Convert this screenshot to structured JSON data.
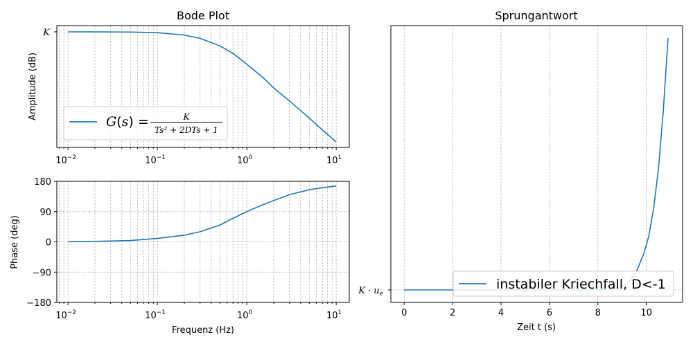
{
  "chart_data": [
    {
      "type": "line",
      "title": "Bode Plot",
      "xlabel": "",
      "ylabel": "Amplitude (dB)",
      "xscale": "log",
      "xlim": [
        0.0075,
        14
      ],
      "xticks": [
        {
          "base": "10",
          "exp": "−2"
        },
        {
          "base": "10",
          "exp": "−1"
        },
        {
          "base": "10",
          "exp": "0"
        },
        {
          "base": "10",
          "exp": "1"
        }
      ],
      "ytick_labels": [
        "K"
      ],
      "grid": true,
      "legend_placement": "lower-left",
      "series": [
        {
          "name": "G(s) = K / (Ts² + 2DTs + 1)",
          "legend": {
            "prefix": "G(s) = ",
            "numerator": "K",
            "denominator": "Ts² + 2DTs + 1"
          },
          "x": [
            0.01,
            0.02,
            0.05,
            0.1,
            0.2,
            0.3,
            0.5,
            0.7,
            1.0,
            1.5,
            2.0,
            3.0,
            5.0,
            7.0,
            10.0
          ],
          "y_relative": [
            0,
            -0.02,
            -0.1,
            -0.4,
            -1.5,
            -3.0,
            -6.5,
            -10.0,
            -15.0,
            -21.0,
            -26.0,
            -32.0,
            -40.0,
            -45.5,
            -51.0
          ]
        }
      ],
      "color": "#1f77b4"
    },
    {
      "type": "line",
      "title": "",
      "xlabel": "Frequenz (Hz)",
      "ylabel": "Phase (deg)",
      "xscale": "log",
      "xlim": [
        0.0075,
        14
      ],
      "ylim": [
        -180,
        180
      ],
      "xticks": [
        {
          "base": "10",
          "exp": "−2"
        },
        {
          "base": "10",
          "exp": "−1"
        },
        {
          "base": "10",
          "exp": "0"
        },
        {
          "base": "10",
          "exp": "1"
        }
      ],
      "yticks": [
        180,
        90,
        0,
        -90,
        -180
      ],
      "ytick_labels": [
        "180",
        "90",
        "0",
        "−90",
        "−180"
      ],
      "grid": true,
      "series": [
        {
          "name": "",
          "x": [
            0.01,
            0.02,
            0.05,
            0.1,
            0.2,
            0.3,
            0.5,
            0.7,
            1.0,
            1.5,
            2.0,
            3.0,
            5.0,
            7.0,
            10.0
          ],
          "y": [
            0.5,
            1.5,
            4,
            10,
            20,
            30,
            50,
            70,
            90,
            110,
            123,
            140,
            155,
            161,
            166
          ]
        }
      ],
      "color": "#1f77b4"
    },
    {
      "type": "line",
      "title": "Sprungantwort",
      "xlabel": "Zeit t (s)",
      "ylabel": "",
      "xlim": [
        -0.55,
        11.5
      ],
      "xticks": [
        0,
        2,
        4,
        6,
        8,
        10
      ],
      "xtick_labels": [
        "0",
        "2",
        "4",
        "6",
        "8",
        "10"
      ],
      "ytick_labels": [
        "K·u_e"
      ],
      "ytick_display": {
        "base": "K · u",
        "sub": "e"
      },
      "grid": true,
      "legend_placement": "lower-right",
      "series": [
        {
          "name": "instabiler Kriechfall, D<-1",
          "x": [
            0,
            1,
            2,
            3,
            4,
            5,
            6,
            7,
            8,
            8.5,
            9,
            9.3,
            9.6,
            9.9,
            10.1,
            10.3,
            10.5,
            10.7,
            10.9
          ],
          "y_relative": [
            0,
            0,
            0,
            0,
            0,
            0,
            0,
            0,
            0.2,
            0.5,
            2,
            5,
            11,
            21,
            31,
            47,
            70,
            103,
            146
          ]
        }
      ],
      "color": "#1f77b4"
    }
  ]
}
